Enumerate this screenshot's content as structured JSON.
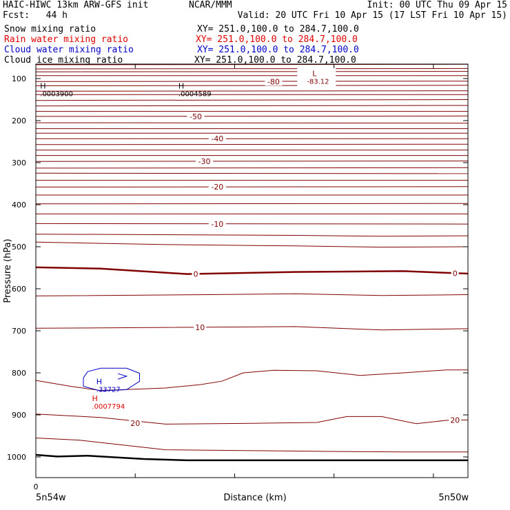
{
  "header": {
    "title_left": "HAIC-HIWC 13km ARW-GFS init",
    "org": "NCAR/MMM",
    "init": "Init: 00 UTC Thu 09 Apr 15",
    "fcst": "Fcst:   44 h",
    "valid": "Valid: 20 UTC Fri 10 Apr 15 (17 LST Fri 10 Apr 15)"
  },
  "fields": [
    {
      "name": "Snow mixing ratio",
      "xy": "XY= 251.0,100.0 to 284.7,100.0",
      "color": "#000000"
    },
    {
      "name": "Rain water mixing ratio",
      "xy": "XY= 251.0,100.0 to 284.7,100.0",
      "color": "#e00000"
    },
    {
      "name": "Cloud water mixing ratio",
      "xy": "XY= 251.0,100.0 to 284.7,100.0",
      "color": "#0000c8"
    },
    {
      "name": "Cloud ice mixing ratio",
      "xy": "XY= 251.0,100.0 to 284.7,100.0",
      "color": "#000000"
    }
  ],
  "chart_data": {
    "type": "line",
    "xlabel": "Distance (km)",
    "ylabel": "Pressure (hPa)",
    "x_left_label": "5n54w",
    "x_right_label": "5n50w",
    "x_tick_zero": "0",
    "xlim": [
      0,
      100
    ],
    "ylim": [
      1050,
      50
    ],
    "y_ticks": [
      100,
      200,
      300,
      400,
      500,
      600,
      700,
      800,
      900,
      1000
    ],
    "x_ticks": [
      0,
      23,
      46,
      69,
      92
    ],
    "colors": {
      "temperature": "#800000",
      "terrain": "#000000",
      "rain": "#e00000",
      "cloud": "#0000c8"
    },
    "isotherms": [
      {
        "points": [
          [
            0,
            51
          ],
          [
            100,
            53
          ]
        ]
      },
      {
        "points": [
          [
            0,
            60
          ],
          [
            100,
            60
          ]
        ]
      },
      {
        "points": [
          [
            0,
            67
          ],
          [
            100,
            66
          ]
        ]
      },
      {
        "points": [
          [
            0,
            77
          ],
          [
            100,
            76
          ]
        ]
      },
      {
        "points": [
          [
            0,
            84
          ],
          [
            100,
            83
          ]
        ]
      },
      {
        "points": [
          [
            0,
            93
          ],
          [
            100,
            93
          ]
        ]
      },
      {
        "points": [
          [
            0,
            107
          ],
          [
            100,
            106
          ]
        ]
      },
      {
        "points": [
          [
            0,
            117
          ],
          [
            100,
            116
          ]
        ]
      },
      {
        "points": [
          [
            0,
            130
          ],
          [
            100,
            129
          ]
        ]
      },
      {
        "points": [
          [
            0,
            138
          ],
          [
            100,
            138
          ]
        ]
      },
      {
        "points": [
          [
            0,
            152
          ],
          [
            100,
            150
          ]
        ]
      },
      {
        "points": [
          [
            0,
            165
          ],
          [
            100,
            164
          ]
        ]
      },
      {
        "points": [
          [
            0,
            178
          ],
          [
            100,
            178
          ]
        ]
      },
      {
        "points": [
          [
            0,
            190
          ],
          [
            100,
            189
          ]
        ]
      },
      {
        "points": [
          [
            0,
            205
          ],
          [
            100,
            206
          ]
        ]
      },
      {
        "points": [
          [
            0,
            219
          ],
          [
            100,
            219
          ]
        ]
      },
      {
        "points": [
          [
            0,
            230
          ],
          [
            100,
            230
          ]
        ]
      },
      {
        "points": [
          [
            0,
            243
          ],
          [
            100,
            243
          ]
        ]
      },
      {
        "points": [
          [
            0,
            257
          ],
          [
            100,
            256
          ]
        ]
      },
      {
        "points": [
          [
            0,
            270
          ],
          [
            100,
            270
          ]
        ]
      },
      {
        "points": [
          [
            0,
            283
          ],
          [
            100,
            283
          ]
        ]
      },
      {
        "points": [
          [
            0,
            297
          ],
          [
            100,
            296
          ]
        ]
      },
      {
        "points": [
          [
            0,
            313
          ],
          [
            100,
            312
          ]
        ]
      },
      {
        "points": [
          [
            0,
            325
          ],
          [
            100,
            326
          ]
        ]
      },
      {
        "points": [
          [
            0,
            342
          ],
          [
            100,
            342
          ]
        ]
      },
      {
        "points": [
          [
            0,
            358
          ],
          [
            100,
            357
          ]
        ]
      },
      {
        "points": [
          [
            0,
            377
          ],
          [
            100,
            377
          ]
        ]
      },
      {
        "points": [
          [
            0,
            398
          ],
          [
            100,
            397
          ]
        ]
      },
      {
        "points": [
          [
            0,
            422
          ],
          [
            100,
            422
          ]
        ]
      },
      {
        "points": [
          [
            0,
            445
          ],
          [
            100,
            446
          ]
        ]
      },
      {
        "points": [
          [
            0,
            470
          ],
          [
            60,
            473
          ],
          [
            80,
            475
          ],
          [
            100,
            474
          ]
        ]
      },
      {
        "points": [
          [
            0,
            489
          ],
          [
            30,
            495
          ],
          [
            60,
            498
          ],
          [
            80,
            501
          ],
          [
            100,
            500
          ]
        ]
      },
      {
        "points": [
          [
            0,
            549
          ],
          [
            15,
            552
          ],
          [
            35,
            565
          ],
          [
            60,
            560
          ],
          [
            85,
            558
          ],
          [
            100,
            564
          ]
        ],
        "bold": true
      },
      {
        "points": [
          [
            0,
            617
          ],
          [
            40,
            614
          ],
          [
            60,
            612
          ],
          [
            80,
            616
          ],
          [
            100,
            614
          ]
        ]
      },
      {
        "points": [
          [
            0,
            694
          ],
          [
            30,
            692
          ],
          [
            60,
            690
          ],
          [
            80,
            698
          ],
          [
            100,
            695
          ]
        ]
      },
      {
        "points": [
          [
            0,
            818
          ],
          [
            8,
            832
          ],
          [
            15,
            842
          ],
          [
            30,
            836
          ],
          [
            38,
            828
          ],
          [
            43,
            820
          ],
          [
            48,
            800
          ],
          [
            55,
            794
          ],
          [
            65,
            795
          ],
          [
            75,
            806
          ],
          [
            85,
            800
          ],
          [
            95,
            793
          ],
          [
            100,
            793
          ]
        ]
      },
      {
        "points": [
          [
            0,
            898
          ],
          [
            15,
            906
          ],
          [
            30,
            922
          ],
          [
            50,
            920
          ],
          [
            65,
            918
          ],
          [
            72,
            904
          ],
          [
            80,
            904
          ],
          [
            88,
            921
          ],
          [
            95,
            913
          ],
          [
            100,
            912
          ]
        ]
      },
      {
        "points": [
          [
            0,
            955
          ],
          [
            10,
            960
          ],
          [
            30,
            983
          ],
          [
            50,
            985
          ],
          [
            70,
            987
          ],
          [
            85,
            988
          ],
          [
            100,
            988
          ]
        ]
      }
    ],
    "terrain": {
      "points": [
        [
          0,
          995
        ],
        [
          5,
          999
        ],
        [
          12,
          997
        ],
        [
          25,
          1005
        ],
        [
          35,
          1008
        ],
        [
          50,
          1008
        ],
        [
          75,
          1008
        ],
        [
          100,
          1008
        ]
      ]
    },
    "contour_labels": [
      {
        "text": "-80",
        "x": 55,
        "p": 107
      },
      {
        "text": "-50",
        "x": 37,
        "p": 190
      },
      {
        "text": "-40",
        "x": 42,
        "p": 243
      },
      {
        "text": "-30",
        "x": 39,
        "p": 297
      },
      {
        "text": "-20",
        "x": 42,
        "p": 357
      },
      {
        "text": "-10",
        "x": 42,
        "p": 446
      },
      {
        "text": "0",
        "x": 37,
        "p": 565
      },
      {
        "text": "0",
        "x": 97,
        "p": 563
      },
      {
        "text": "10",
        "x": 38,
        "p": 692
      },
      {
        "text": "20",
        "x": 23,
        "p": 920
      },
      {
        "text": "20",
        "x": 97,
        "p": 912
      }
    ],
    "markers": [
      {
        "letter": "L",
        "value": "-83.12",
        "x": 64,
        "p": 78,
        "color": "#800000"
      },
      {
        "letter": "H",
        "value": ".0003900",
        "x": 1,
        "p": 107,
        "color": "#000000"
      },
      {
        "letter": "H",
        "value": ".0004589",
        "x": 33,
        "p": 107,
        "color": "#000000"
      },
      {
        "letter": "H",
        "value": ".33727",
        "x": 14,
        "p": 811,
        "color": "#0000c8"
      },
      {
        "letter": "H",
        "value": ".0007794",
        "x": 13,
        "p": 851,
        "color": "#e00000"
      }
    ],
    "cloud_water_contour": {
      "points": [
        [
          11,
          812
        ],
        [
          12,
          797
        ],
        [
          15,
          789
        ],
        [
          21,
          789
        ],
        [
          24,
          801
        ],
        [
          24,
          820
        ],
        [
          21,
          840
        ],
        [
          15,
          843
        ],
        [
          11,
          832
        ],
        [
          11,
          812
        ]
      ]
    },
    "cloud_water_inner": {
      "points": [
        [
          19,
          802
        ],
        [
          21,
          808
        ],
        [
          19,
          815
        ]
      ]
    }
  }
}
